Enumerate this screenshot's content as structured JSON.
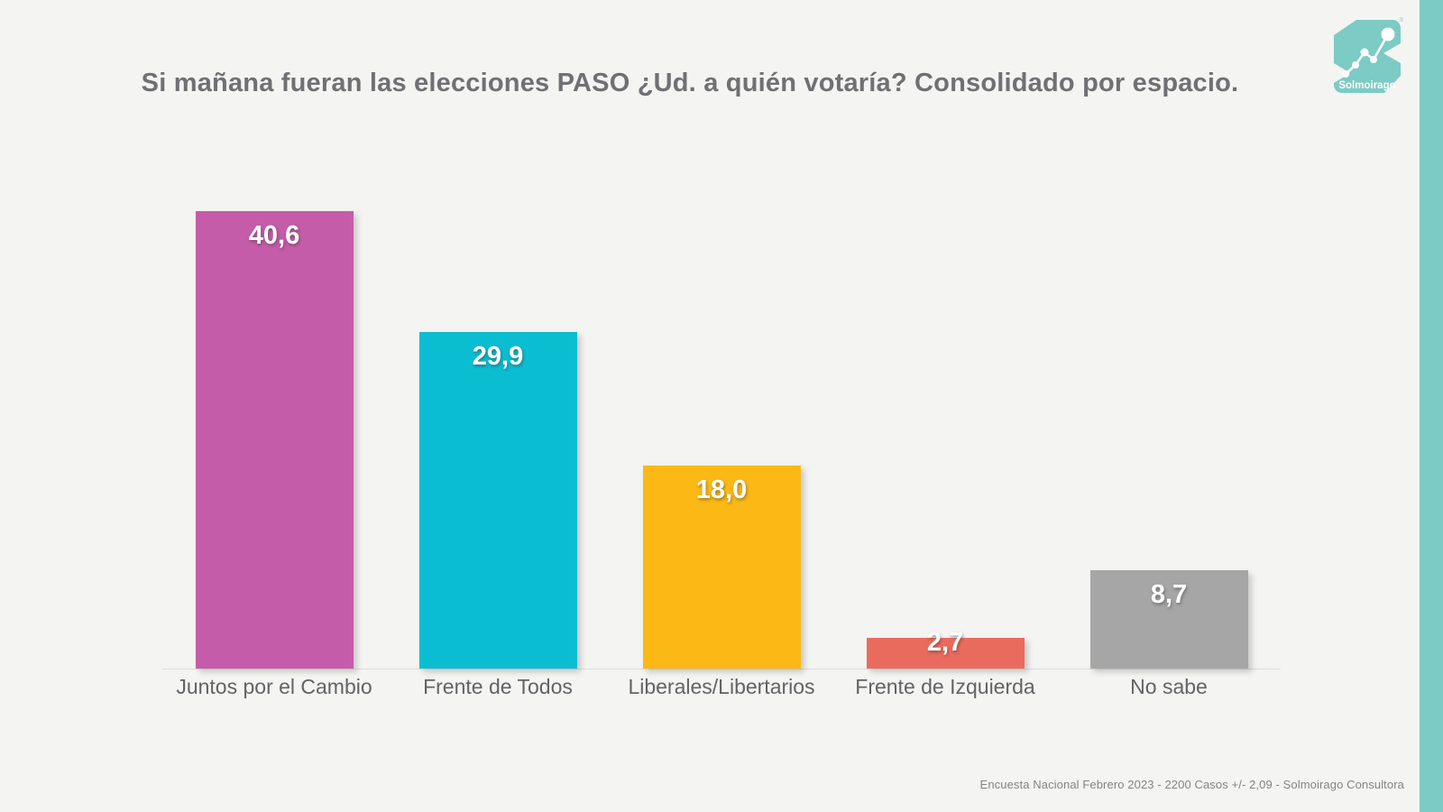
{
  "title": "Si mañana fueran las elecciones PASO ¿Ud. a quién votaría? Consolidado por espacio.",
  "logo": {
    "brand": "Solmoirago",
    "registered_mark": "®"
  },
  "footer": {
    "source_note": "Encuesta Nacional Febrero 2023 - 2200 Casos +/- 2,09  - Solmoirago Consultora"
  },
  "colors": {
    "background": "#F4F4F2",
    "accent_teal": "#7CCBC4",
    "title_text": "#707074",
    "axis_line": "#DCDCDA",
    "category_label_text": "#626366",
    "value_label_text": "#FFFFFF"
  },
  "chart_data": {
    "type": "bar",
    "title": "Si mañana fueran las elecciones PASO ¿Ud. a quién votaría? Consolidado por espacio.",
    "categories": [
      "Juntos por el Cambio",
      "Frente de Todos",
      "Liberales/Libertarios",
      "Frente de Izquierda",
      "No sabe"
    ],
    "values": [
      40.6,
      29.9,
      18.0,
      2.7,
      8.7
    ],
    "value_labels": [
      "40,6",
      "29,9",
      "18,0",
      "2,7",
      "8,7"
    ],
    "bar_colors": [
      "#C45CA9",
      "#0BBDD1",
      "#FCB814",
      "#E96B5E",
      "#A6A6A6"
    ],
    "xlabel": "",
    "ylabel": "",
    "ylim": [
      0,
      40.6
    ],
    "grid": false,
    "legend": false,
    "data_labels_inside_top": true
  }
}
